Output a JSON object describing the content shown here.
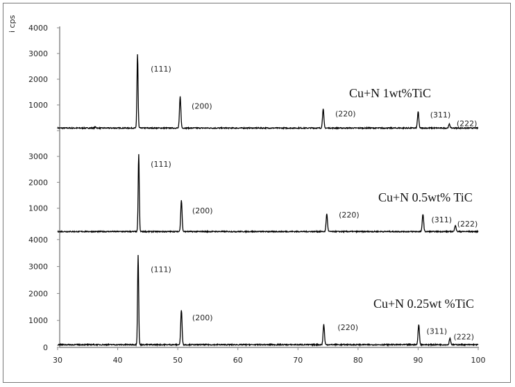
{
  "chart_data": {
    "type": "line",
    "ylabel": "i cps",
    "xlim": [
      30,
      100
    ],
    "x_ticks": [
      30,
      40,
      50,
      60,
      70,
      80,
      90,
      100
    ],
    "grid": false,
    "line_color": "#000000",
    "panels": [
      {
        "name": "Cu+N 1wt%TiC",
        "y_ticks": [
          1000,
          2000,
          3000,
          4000
        ],
        "ylim": [
          0,
          4000
        ],
        "baseline": 100,
        "peaks": [
          {
            "x": 36.3,
            "y": 140
          },
          {
            "x": 43.3,
            "y": 2970
          },
          {
            "x": 50.4,
            "y": 1320
          },
          {
            "x": 74.2,
            "y": 840
          },
          {
            "x": 90.0,
            "y": 730
          },
          {
            "x": 95.2,
            "y": 250
          }
        ],
        "annotations": [
          {
            "text": "(111)",
            "x": 45.5,
            "y": 2300
          },
          {
            "text": "(200)",
            "x": 52.3,
            "y": 850
          },
          {
            "text": "(220)",
            "x": 76.2,
            "y": 550
          },
          {
            "text": "(311)",
            "x": 92.0,
            "y": 510
          },
          {
            "text": "(222)",
            "x": 96.4,
            "y": 170
          }
        ]
      },
      {
        "name": "Cu+N 0.5wt% TiC",
        "y_ticks": [
          1000,
          2000,
          3000
        ],
        "ylim": [
          0,
          3000
        ],
        "baseline": 100,
        "peaks": [
          {
            "x": 43.5,
            "y": 3080
          },
          {
            "x": 50.6,
            "y": 1310
          },
          {
            "x": 74.8,
            "y": 780
          },
          {
            "x": 90.8,
            "y": 780
          },
          {
            "x": 96.2,
            "y": 350
          }
        ],
        "annotations": [
          {
            "text": "(111)",
            "x": 45.5,
            "y": 2600
          },
          {
            "text": "(200)",
            "x": 52.4,
            "y": 800
          },
          {
            "text": "(220)",
            "x": 76.8,
            "y": 650
          },
          {
            "text": "(311)",
            "x": 92.2,
            "y": 460
          },
          {
            "text": "(222)",
            "x": 96.5,
            "y": 290
          }
        ]
      },
      {
        "name": "Cu+N 0.25wt %TiC",
        "y_ticks": [
          0,
          1000,
          2000,
          3000,
          4000
        ],
        "ylim": [
          0,
          4000
        ],
        "baseline": 100,
        "peaks": [
          {
            "x": 43.4,
            "y": 3430
          },
          {
            "x": 50.6,
            "y": 1390
          },
          {
            "x": 74.3,
            "y": 850
          },
          {
            "x": 90.1,
            "y": 850
          },
          {
            "x": 95.3,
            "y": 350
          }
        ],
        "annotations": [
          {
            "text": "(111)",
            "x": 45.5,
            "y": 2800
          },
          {
            "text": "(200)",
            "x": 52.4,
            "y": 1000
          },
          {
            "text": "(220)",
            "x": 76.6,
            "y": 650
          },
          {
            "text": "(311)",
            "x": 91.4,
            "y": 500
          },
          {
            "text": "(222)",
            "x": 95.9,
            "y": 300
          }
        ]
      }
    ]
  }
}
